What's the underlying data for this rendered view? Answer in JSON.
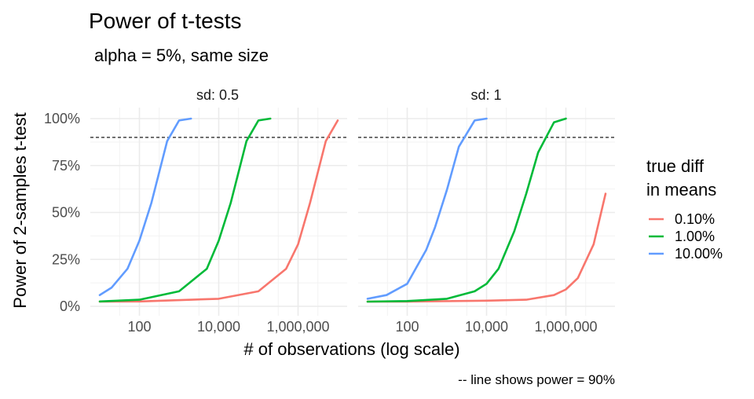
{
  "chart_data": {
    "type": "line",
    "title": "Power of t-tests",
    "subtitle": "alpha = 5%, same size",
    "xlabel": "# of observations (log scale)",
    "ylabel": "Power of 2-samples t-test",
    "caption": "-- line shows power = 90%",
    "x_scale": "log10",
    "xlim": [
      10,
      10000000
    ],
    "ylim": [
      0,
      1
    ],
    "x_ticks": [
      {
        "value": 100,
        "label": "100"
      },
      {
        "value": 10000,
        "label": "10,000"
      },
      {
        "value": 1000000,
        "label": "1,000,000"
      }
    ],
    "y_ticks": [
      {
        "value": 0,
        "label": "0%"
      },
      {
        "value": 0.25,
        "label": "25%"
      },
      {
        "value": 0.5,
        "label": "50%"
      },
      {
        "value": 0.75,
        "label": "75%"
      },
      {
        "value": 1,
        "label": "100%"
      }
    ],
    "reference_line": {
      "y": 0.9,
      "style": "dashed"
    },
    "legend": {
      "title_lines": [
        "true diff",
        "in means"
      ],
      "position": "right",
      "entries": [
        {
          "label": "0.10%",
          "color": "#F8766D"
        },
        {
          "label": "1.00%",
          "color": "#00BA38"
        },
        {
          "label": "10.00%",
          "color": "#619CFF"
        }
      ]
    },
    "panels": [
      {
        "strip": "sd: 0.5",
        "series": [
          {
            "name": "0.10%",
            "color": "#F8766D",
            "x": [
              10,
              100,
              10000,
              100000,
              500000,
              1000000,
              2000000,
              5000000,
              10000000
            ],
            "y": [
              0.025,
              0.026,
              0.04,
              0.08,
              0.2,
              0.33,
              0.55,
              0.88,
              0.99
            ]
          },
          {
            "name": "1.00%",
            "color": "#00BA38",
            "x": [
              10,
              100,
              1000,
              5000,
              10000,
              20000,
              50000,
              100000,
              200000
            ],
            "y": [
              0.026,
              0.035,
              0.08,
              0.2,
              0.35,
              0.55,
              0.88,
              0.99,
              1.0
            ]
          },
          {
            "name": "10.00%",
            "color": "#619CFF",
            "x": [
              10,
              20,
              50,
              100,
              200,
              500,
              1000,
              2000
            ],
            "y": [
              0.06,
              0.1,
              0.2,
              0.35,
              0.55,
              0.88,
              0.99,
              1.0
            ]
          }
        ]
      },
      {
        "strip": "sd: 1",
        "series": [
          {
            "name": "0.10%",
            "color": "#F8766D",
            "x": [
              10,
              100,
              10000,
              100000,
              500000,
              1000000,
              2000000,
              5000000,
              10000000
            ],
            "y": [
              0.025,
              0.025,
              0.03,
              0.035,
              0.06,
              0.09,
              0.15,
              0.33,
              0.6
            ]
          },
          {
            "name": "1.00%",
            "color": "#00BA38",
            "x": [
              10,
              100,
              1000,
              5000,
              10000,
              20000,
              50000,
              100000,
              200000,
              500000,
              1000000
            ],
            "y": [
              0.025,
              0.028,
              0.04,
              0.08,
              0.12,
              0.2,
              0.4,
              0.6,
              0.82,
              0.98,
              1.0
            ]
          },
          {
            "name": "10.00%",
            "color": "#619CFF",
            "x": [
              10,
              30,
              100,
              300,
              500,
              1000,
              2000,
              5000,
              10000
            ],
            "y": [
              0.04,
              0.06,
              0.12,
              0.3,
              0.42,
              0.62,
              0.85,
              0.99,
              1.0
            ]
          }
        ]
      }
    ]
  }
}
